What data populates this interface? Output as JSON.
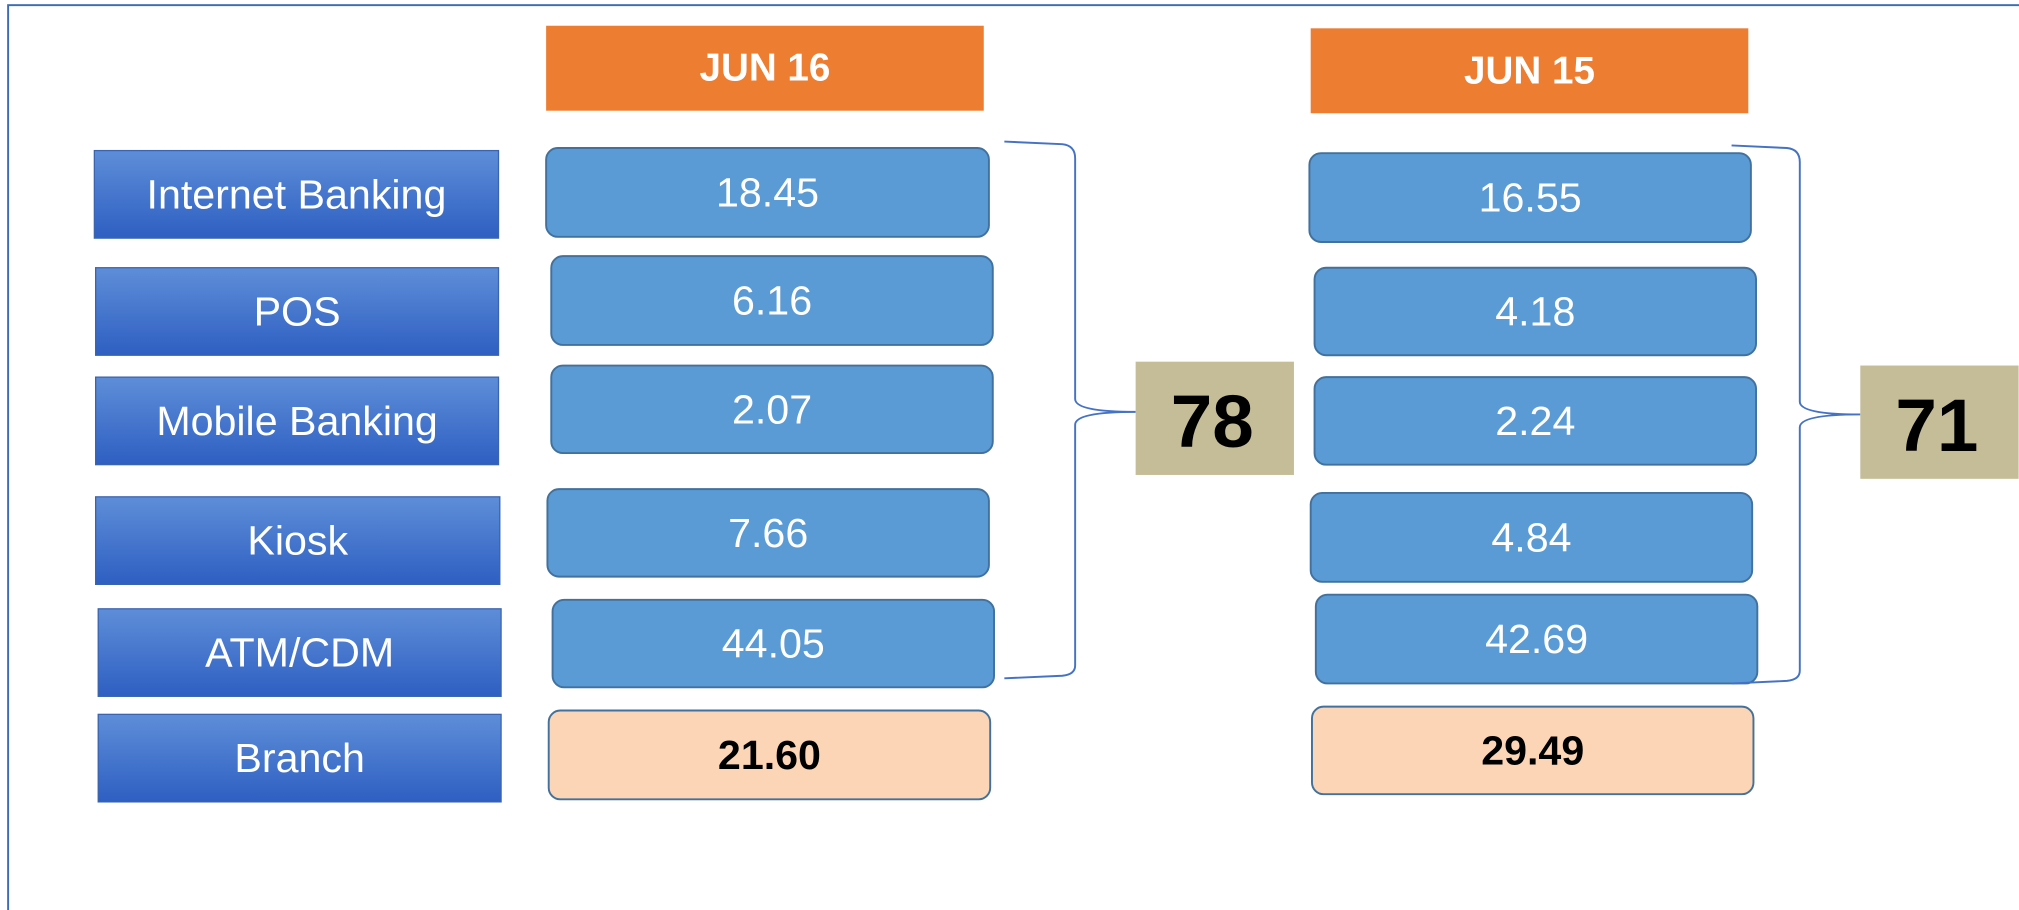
{
  "rows": [
    "Internet Banking",
    "POS",
    "Mobile Banking",
    "Kiosk",
    "ATM/CDM",
    "Branch"
  ],
  "columns": [
    {
      "date": "JUN 16",
      "values": [
        "18.45",
        "6.16",
        "2.07",
        "7.66",
        "44.05"
      ],
      "branch": "21.60",
      "total": "78"
    },
    {
      "date": "JUN 15",
      "values": [
        "16.55",
        "4.18",
        "2.24",
        "4.84",
        "42.69"
      ],
      "branch": "29.49",
      "total": "71"
    }
  ]
}
